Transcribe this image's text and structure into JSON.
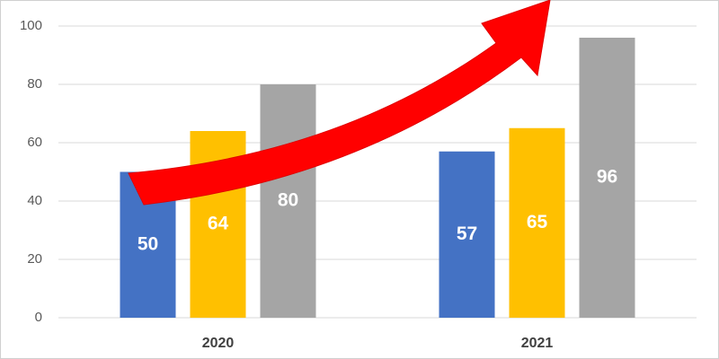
{
  "chart_data": {
    "type": "bar",
    "categories": [
      "2020",
      "2021"
    ],
    "series": [
      {
        "color": "#4472c4",
        "values": [
          50,
          57
        ]
      },
      {
        "color": "#ffc000",
        "values": [
          64,
          65
        ]
      },
      {
        "color": "#a5a5a5",
        "values": [
          80,
          96
        ]
      }
    ],
    "ylim": [
      0,
      100
    ],
    "yticks": [
      0,
      20,
      40,
      60,
      80,
      100
    ],
    "grid": true
  }
}
